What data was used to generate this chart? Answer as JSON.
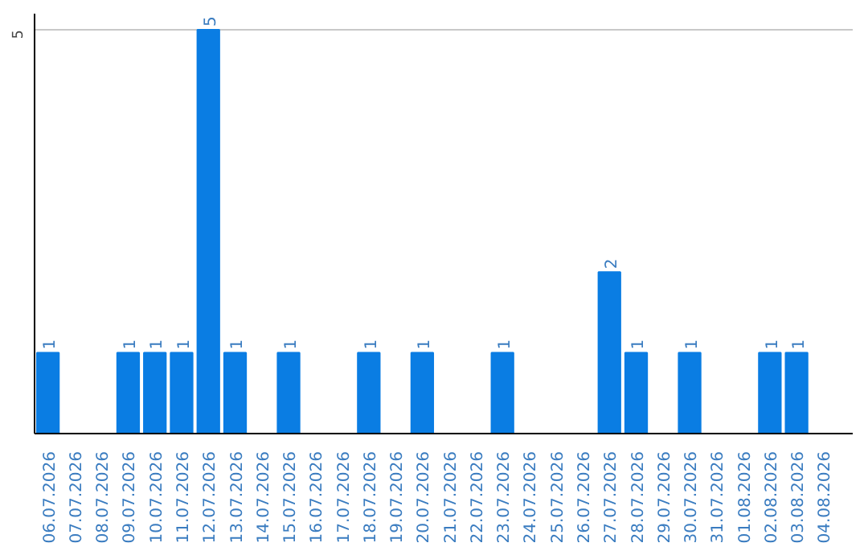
{
  "chart_data": {
    "type": "bar",
    "categories": [
      "06.07.2026",
      "07.07.2026",
      "08.07.2026",
      "09.07.2026",
      "10.07.2026",
      "11.07.2026",
      "12.07.2026",
      "13.07.2026",
      "14.07.2026",
      "15.07.2026",
      "16.07.2026",
      "17.07.2026",
      "18.07.2026",
      "19.07.2026",
      "20.07.2026",
      "21.07.2026",
      "22.07.2026",
      "23.07.2026",
      "24.07.2026",
      "25.07.2026",
      "26.07.2026",
      "27.07.2026",
      "28.07.2026",
      "29.07.2026",
      "30.07.2026",
      "31.07.2026",
      "01.08.2026",
      "02.08.2026",
      "03.08.2026",
      "04.08.2026"
    ],
    "values": [
      1,
      0,
      0,
      1,
      1,
      1,
      5,
      1,
      0,
      1,
      0,
      0,
      1,
      0,
      1,
      0,
      0,
      1,
      0,
      0,
      0,
      2,
      1,
      0,
      1,
      0,
      0,
      1,
      1,
      0
    ],
    "value_labels": [
      "1",
      null,
      null,
      "1",
      "1",
      "1",
      "5",
      "1",
      null,
      "1",
      null,
      null,
      "1",
      null,
      "1",
      null,
      null,
      "1",
      null,
      null,
      null,
      "2",
      "1",
      null,
      "1",
      null,
      null,
      "1",
      "1",
      null
    ],
    "color": "#0a7de3",
    "ref_lines": [
      {
        "axis": "y",
        "value": 5,
        "label": "5",
        "color": "#c8c8c8"
      }
    ]
  }
}
